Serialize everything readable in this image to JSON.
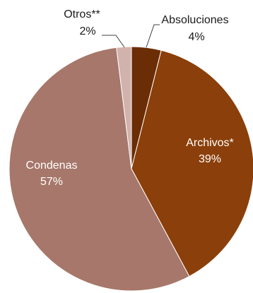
{
  "chart_data": {
    "type": "pie",
    "title": "",
    "slices": [
      {
        "label": "Absoluciones",
        "value": 4,
        "value_label": "4%",
        "color": "#6b2d05"
      },
      {
        "label": "Archivos*",
        "value": 39,
        "value_label": "39%",
        "color": "#8b3f0a"
      },
      {
        "label": "Condenas",
        "value": 57,
        "value_label": "57%",
        "color": "#a6776a"
      },
      {
        "label": "Otros**",
        "value": 2,
        "value_label": "2%",
        "color": "#d2b2ac"
      }
    ],
    "start_angle_deg": 0,
    "direction": "clockwise",
    "legend": "none"
  }
}
